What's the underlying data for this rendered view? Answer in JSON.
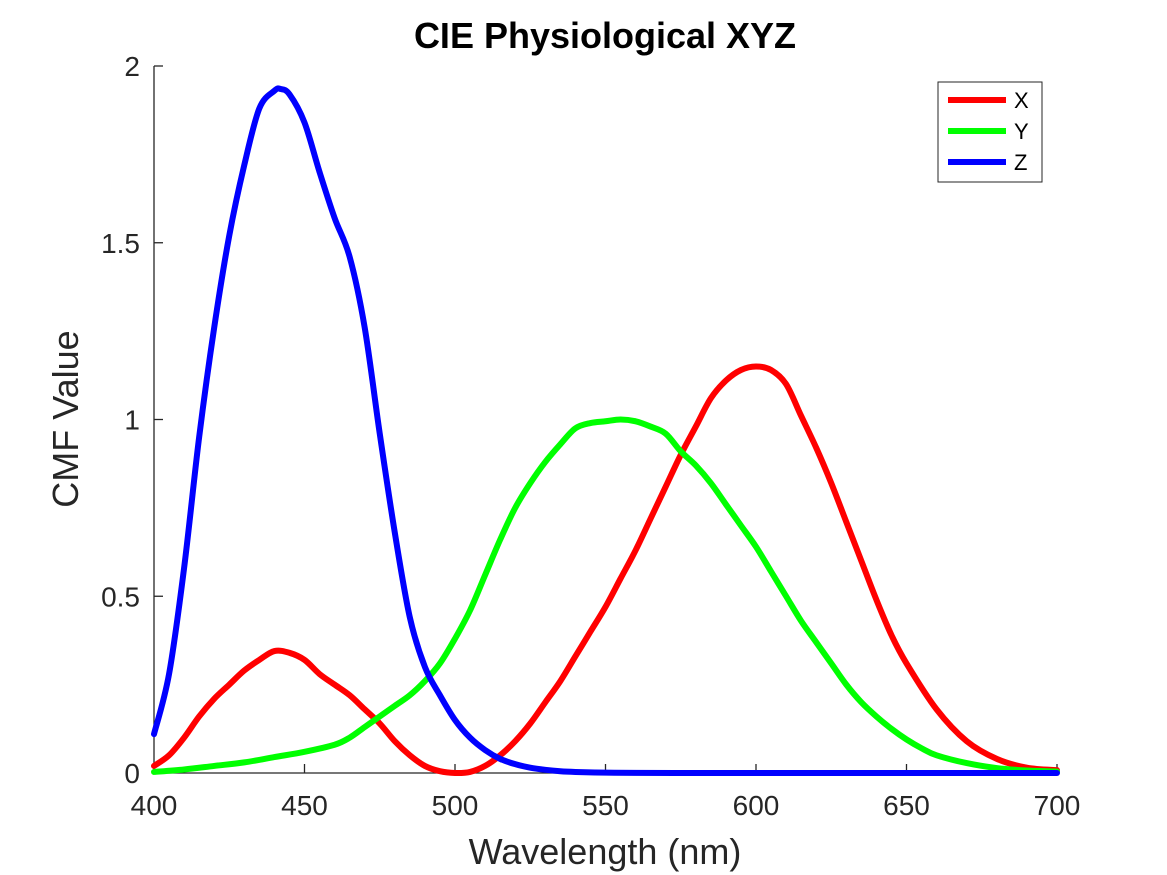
{
  "chart_data": {
    "type": "line",
    "title": "CIE Physiological XYZ",
    "xlabel": "Wavelength (nm)",
    "ylabel": "CMF Value",
    "xlim": [
      400,
      700
    ],
    "ylim": [
      0,
      2
    ],
    "xticks": [
      400,
      450,
      500,
      550,
      600,
      650,
      700
    ],
    "yticks": [
      0,
      0.5,
      1,
      1.5,
      2
    ],
    "xtick_labels": [
      "400",
      "450",
      "500",
      "550",
      "600",
      "650",
      "700"
    ],
    "ytick_labels": [
      "0",
      "0.5",
      "1",
      "1.5",
      "2"
    ],
    "grid": false,
    "legend_position": "top-right",
    "series": [
      {
        "name": "X",
        "color": "#ff0000",
        "x": [
          400,
          405,
          410,
          415,
          420,
          425,
          430,
          435,
          440,
          445,
          450,
          455,
          460,
          465,
          470,
          475,
          480,
          485,
          490,
          495,
          500,
          505,
          510,
          515,
          520,
          525,
          530,
          535,
          540,
          545,
          550,
          555,
          560,
          565,
          570,
          575,
          580,
          585,
          590,
          595,
          600,
          605,
          610,
          615,
          620,
          625,
          630,
          635,
          640,
          645,
          650,
          660,
          670,
          680,
          690,
          700
        ],
        "values": [
          0.02,
          0.05,
          0.1,
          0.16,
          0.21,
          0.25,
          0.29,
          0.32,
          0.345,
          0.34,
          0.32,
          0.28,
          0.25,
          0.22,
          0.18,
          0.14,
          0.09,
          0.05,
          0.02,
          0.005,
          0.0,
          0.003,
          0.02,
          0.05,
          0.09,
          0.14,
          0.2,
          0.26,
          0.33,
          0.4,
          0.47,
          0.55,
          0.63,
          0.72,
          0.81,
          0.9,
          0.98,
          1.06,
          1.11,
          1.14,
          1.15,
          1.14,
          1.1,
          1.01,
          0.92,
          0.82,
          0.71,
          0.6,
          0.49,
          0.39,
          0.31,
          0.18,
          0.09,
          0.04,
          0.015,
          0.008
        ]
      },
      {
        "name": "Y",
        "color": "#00ff00",
        "x": [
          400,
          410,
          420,
          430,
          440,
          450,
          460,
          465,
          470,
          475,
          480,
          485,
          490,
          495,
          500,
          505,
          510,
          515,
          520,
          525,
          530,
          535,
          540,
          545,
          550,
          555,
          560,
          565,
          570,
          575,
          580,
          585,
          590,
          595,
          600,
          605,
          610,
          615,
          620,
          625,
          630,
          635,
          640,
          645,
          650,
          655,
          660,
          670,
          680,
          690,
          700
        ],
        "values": [
          0.003,
          0.01,
          0.02,
          0.03,
          0.045,
          0.06,
          0.08,
          0.1,
          0.13,
          0.16,
          0.19,
          0.22,
          0.26,
          0.31,
          0.38,
          0.46,
          0.56,
          0.66,
          0.75,
          0.82,
          0.88,
          0.93,
          0.975,
          0.99,
          0.995,
          1.0,
          0.995,
          0.98,
          0.96,
          0.91,
          0.87,
          0.82,
          0.76,
          0.7,
          0.64,
          0.57,
          0.5,
          0.43,
          0.37,
          0.31,
          0.25,
          0.2,
          0.16,
          0.125,
          0.095,
          0.07,
          0.05,
          0.028,
          0.014,
          0.007,
          0.004
        ]
      },
      {
        "name": "Z",
        "color": "#0000ff",
        "x": [
          400,
          405,
          410,
          415,
          420,
          425,
          430,
          435,
          440,
          442,
          445,
          450,
          455,
          460,
          465,
          470,
          475,
          480,
          485,
          490,
          495,
          500,
          505,
          510,
          515,
          520,
          525,
          530,
          535,
          540,
          550,
          560,
          580,
          600,
          650,
          700
        ],
        "values": [
          0.11,
          0.28,
          0.58,
          0.95,
          1.26,
          1.52,
          1.72,
          1.88,
          1.93,
          1.935,
          1.92,
          1.84,
          1.7,
          1.57,
          1.46,
          1.26,
          0.96,
          0.68,
          0.44,
          0.3,
          0.22,
          0.15,
          0.1,
          0.065,
          0.04,
          0.025,
          0.015,
          0.009,
          0.005,
          0.003,
          0.001,
          0.0005,
          0.0,
          0.0,
          0.0,
          0.0
        ]
      }
    ]
  }
}
